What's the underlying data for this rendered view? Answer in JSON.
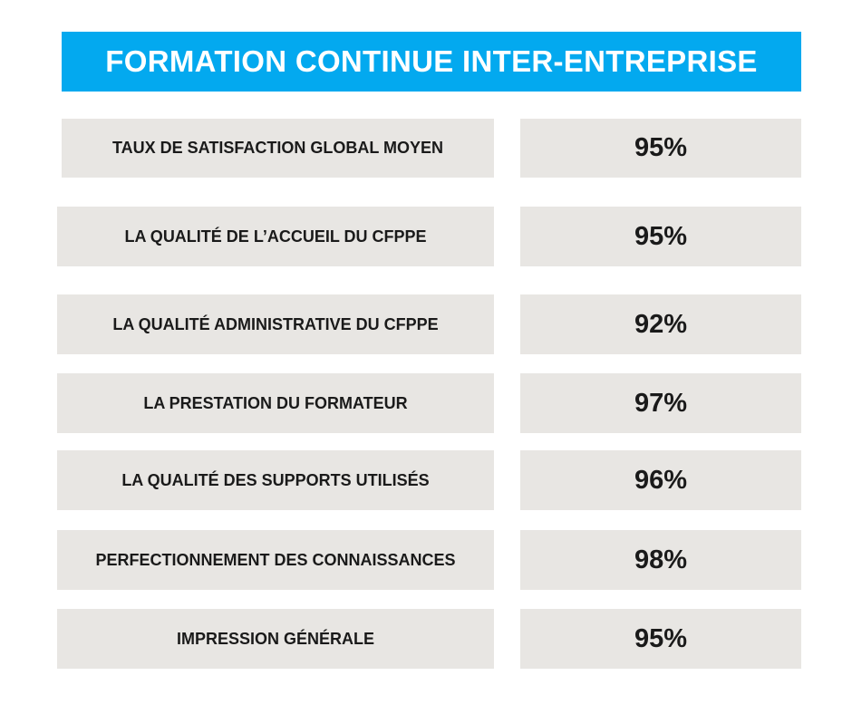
{
  "title": "FORMATION CONTINUE INTER-ENTREPRISE",
  "rows": [
    {
      "label": "TAUX DE SATISFACTION GLOBAL MOYEN",
      "value": "95%"
    },
    {
      "label": "LA QUALITÉ DE L’ACCUEIL DU CFPPE",
      "value": "95%"
    },
    {
      "label": "LA QUALITÉ ADMINISTRATIVE DU CFPPE",
      "value": "92%"
    },
    {
      "label": "LA PRESTATION DU FORMATEUR",
      "value": "97%"
    },
    {
      "label": "LA QUALITÉ DES SUPPORTS UTILISÉS",
      "value": "96%"
    },
    {
      "label": "PERFECTIONNEMENT DES CONNAISSANCES",
      "value": "98%"
    },
    {
      "label": "IMPRESSION GÉNÉRALE",
      "value": "95%"
    }
  ],
  "colors": {
    "header_bg": "#03a9ef",
    "cell_bg": "#e8e6e3",
    "text": "#1a1a1a"
  }
}
